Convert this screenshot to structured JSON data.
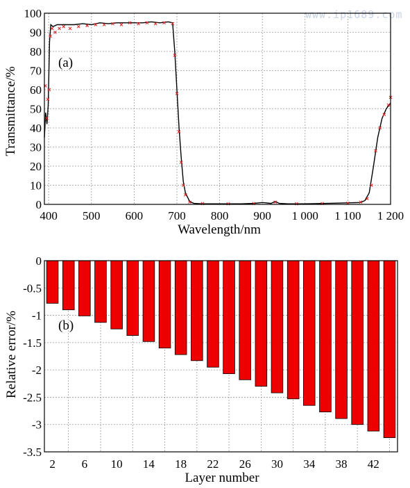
{
  "watermark": "www.ip1689.com",
  "chart_data": [
    {
      "type": "line",
      "panel_label": "(a)",
      "xlabel": "Wavelength/nm",
      "ylabel": "Transmittance/%",
      "xlim": [
        390,
        1200
      ],
      "ylim": [
        0,
        100
      ],
      "x_ticks": [
        400,
        500,
        600,
        700,
        800,
        900,
        1000,
        1100,
        1200
      ],
      "x_tick_labels": [
        "400",
        "500",
        "600",
        "700",
        "800",
        "900",
        "1 000",
        "1 100",
        "1 200"
      ],
      "y_ticks": [
        0,
        10,
        20,
        30,
        40,
        50,
        60,
        70,
        80,
        90,
        100
      ],
      "y_tick_labels": [
        "0",
        "10",
        "20",
        "30",
        "40",
        "50",
        "60",
        "70",
        "80",
        "90",
        "100"
      ],
      "grid": true,
      "series": [
        {
          "color": "#000000",
          "style": "solid",
          "x": [
            390,
            393,
            396,
            399,
            402,
            405,
            410,
            420,
            440,
            460,
            480,
            500,
            520,
            540,
            560,
            580,
            600,
            620,
            640,
            660,
            680,
            690,
            695,
            700,
            705,
            710,
            715,
            720,
            730,
            740,
            760,
            800,
            850,
            880,
            900,
            920,
            930,
            940,
            960,
            1000,
            1050,
            1100,
            1130,
            1140,
            1150,
            1160,
            1170,
            1180,
            1190,
            1200
          ],
          "y": [
            35,
            48,
            42,
            52,
            85,
            94,
            93,
            94,
            94,
            94,
            94.5,
            94,
            95,
            94.5,
            95,
            95,
            95,
            95,
            95.5,
            95,
            95.5,
            95,
            80,
            60,
            40,
            25,
            12,
            6,
            1.5,
            0.5,
            0.3,
            0.3,
            0.3,
            0.5,
            1,
            0.5,
            1.5,
            0.5,
            0.3,
            0.3,
            0.5,
            0.8,
            1,
            2,
            6,
            20,
            35,
            45,
            50,
            53
          ]
        },
        {
          "color": "#e02020",
          "style": "markers",
          "x": [
            392,
            395,
            398,
            401,
            404,
            408,
            415,
            425,
            435,
            450,
            470,
            490,
            510,
            530,
            550,
            570,
            590,
            610,
            630,
            650,
            670,
            690,
            695,
            700,
            705,
            710,
            715,
            720,
            730,
            760,
            820,
            880,
            930,
            980,
            1040,
            1100,
            1130,
            1145,
            1155,
            1165,
            1175,
            1185,
            1195,
            1200
          ],
          "y": [
            62,
            45,
            55,
            60,
            88,
            92,
            90,
            92,
            93,
            92,
            93,
            93.5,
            94,
            94,
            94.5,
            94,
            95,
            94.5,
            95,
            94.5,
            95,
            94.5,
            78,
            58,
            38,
            22,
            10,
            5,
            1.2,
            0.4,
            0.3,
            0.4,
            1.2,
            0.3,
            0.4,
            0.6,
            1.2,
            3,
            10,
            28,
            40,
            47,
            52,
            56
          ]
        }
      ]
    },
    {
      "type": "bar",
      "panel_label": "(b)",
      "xlabel": "Layer number",
      "ylabel": "Relative error/%",
      "ylim": [
        -3.5,
        0
      ],
      "y_ticks": [
        0,
        -0.5,
        -1,
        -1.5,
        -2,
        -2.5,
        -3,
        -3.5
      ],
      "y_tick_labels": [
        "0",
        "-0.5",
        "-1",
        "-1.5",
        "-2",
        "-2.5",
        "-3",
        "-3.5"
      ],
      "x_tick_labels": [
        "2",
        "6",
        "10",
        "14",
        "18",
        "22",
        "26",
        "30",
        "34",
        "38",
        "42"
      ],
      "grid": true,
      "categories": [
        2,
        4,
        6,
        8,
        10,
        12,
        14,
        16,
        18,
        20,
        22,
        24,
        26,
        28,
        30,
        32,
        34,
        36,
        38,
        40,
        42,
        44
      ],
      "values": [
        -0.78,
        -0.9,
        -1.01,
        -1.13,
        -1.25,
        -1.37,
        -1.48,
        -1.6,
        -1.72,
        -1.83,
        -1.95,
        -2.07,
        -2.18,
        -2.3,
        -2.42,
        -2.53,
        -2.65,
        -2.77,
        -2.89,
        -3.0,
        -3.12,
        -3.24
      ],
      "bar_color": "#ee0000"
    }
  ]
}
